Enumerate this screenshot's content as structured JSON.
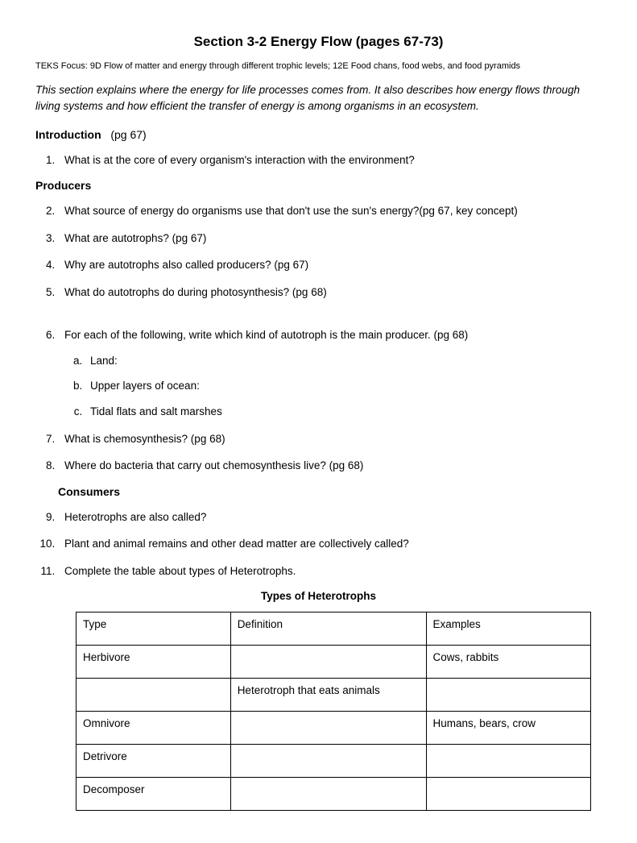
{
  "title": "Section 3-2  Energy Flow (pages 67-73)",
  "teks": "TEKS Focus: 9D Flow of matter and energy through different trophic levels; 12E Food chans, food webs, and food pyramids",
  "intro": "This section explains where the energy for life processes comes from.  It also describes how energy flows through living systems and how efficient the transfer of energy is among organisms in an ecosystem.",
  "sections": {
    "introduction": {
      "label": "Introduction",
      "pg": "(pg 67)"
    },
    "producers": {
      "label": "Producers"
    },
    "consumers": {
      "label": "Consumers"
    }
  },
  "q": {
    "1": "What is at the core of every organism's interaction with the environment?",
    "2": "What source of energy do organisms use that don't use the sun's energy?(pg 67, key concept)",
    "3": "What are autotrophs? (pg 67)",
    "4": "Why are autotrophs also called producers? (pg 67)",
    "5": "What do autotrophs do during photosynthesis? (pg 68)",
    "6": "For each of the following, write which kind of autotroph is the main producer. (pg 68)",
    "6a": "Land:",
    "6b": "Upper layers of ocean:",
    "6c": "Tidal flats and salt marshes",
    "7": " What is chemosynthesis? (pg 68)",
    "8": "Where do bacteria that carry out chemosynthesis live? (pg 68)",
    "9": "Heterotrophs are also called?",
    "10": "Plant and animal remains and other dead matter are collectively called?",
    "11": "Complete the table about types of Heterotrophs."
  },
  "table": {
    "title": "Types of Heterotrophs",
    "headers": {
      "type": "Type",
      "definition": "Definition",
      "examples": "Examples"
    },
    "rows": [
      {
        "type": "Herbivore",
        "definition": "",
        "examples": "Cows, rabbits"
      },
      {
        "type": "",
        "definition": "Heterotroph that eats animals",
        "examples": ""
      },
      {
        "type": "Omnivore",
        "definition": "",
        "examples": "Humans, bears, crow"
      },
      {
        "type": "Detrivore",
        "definition": "",
        "examples": ""
      },
      {
        "type": "Decomposer",
        "definition": "",
        "examples": ""
      }
    ]
  }
}
